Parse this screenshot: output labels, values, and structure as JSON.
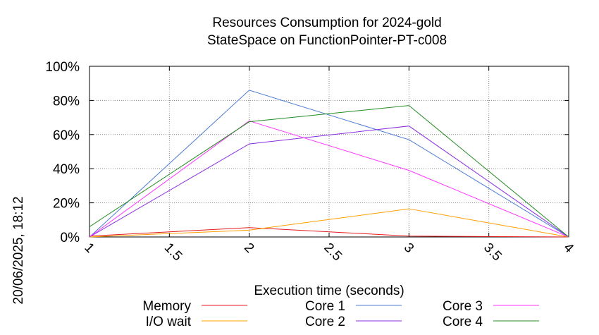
{
  "chart_data": {
    "type": "line",
    "title_line1": "Resources Consumption for 2024-gold",
    "title_line2": "StateSpace on FunctionPointer-PT-c008",
    "xlabel": "Execution time (seconds)",
    "side_label": "20/06/2025, 18:12",
    "xlim": [
      1,
      4
    ],
    "ylim": [
      0,
      100
    ],
    "x_ticks": [
      "1",
      "1.5",
      "2",
      "2.5",
      "3",
      "3.5",
      "4"
    ],
    "y_ticks": [
      "0%",
      "20%",
      "40%",
      "60%",
      "80%",
      "100%"
    ],
    "grid": true,
    "legend_position": "bottom",
    "x": [
      1,
      2,
      3,
      4
    ],
    "series": [
      {
        "name": "Memory",
        "color": "#e41a1c",
        "values": [
          0.5,
          5.5,
          0.5,
          0
        ]
      },
      {
        "name": "I/O wait",
        "color": "#ff9f00",
        "values": [
          0,
          4,
          16.5,
          0
        ]
      },
      {
        "name": "Core 1",
        "color": "#4a7bd4",
        "values": [
          0,
          86,
          57,
          0
        ]
      },
      {
        "name": "Core 2",
        "color": "#8a2be2",
        "values": [
          0,
          54.5,
          65,
          0
        ]
      },
      {
        "name": "Core 3",
        "color": "#ff33ff",
        "values": [
          0,
          68,
          39,
          0
        ]
      },
      {
        "name": "Core 4",
        "color": "#228b22",
        "values": [
          6,
          67.5,
          77,
          0
        ]
      }
    ]
  }
}
